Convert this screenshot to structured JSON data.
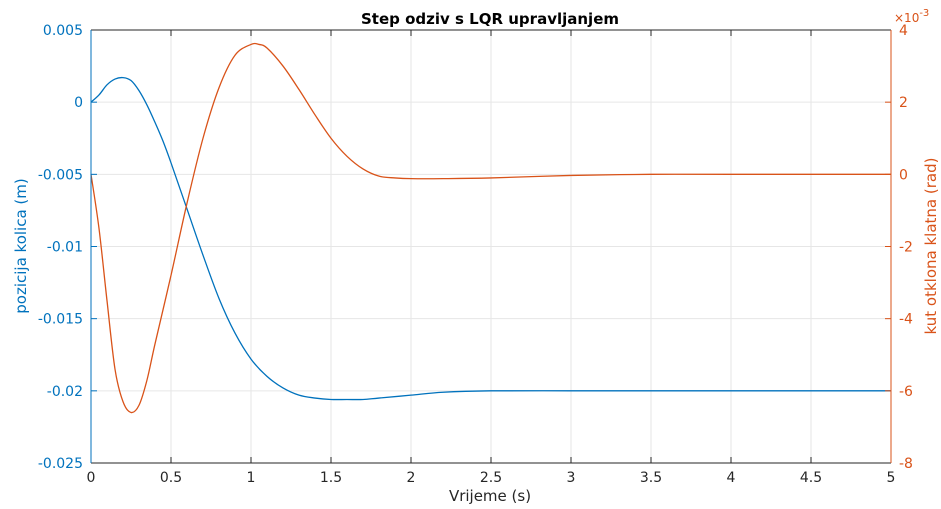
{
  "chart_data": {
    "type": "line",
    "title": "Step odziv s LQR upravljanjem",
    "xlabel": "Vrijeme (s)",
    "ylabel_left": "pozicija kolica (m)",
    "ylabel_right": "kut otklona klatna (rad)",
    "right_exponent_base": "×10",
    "right_exponent_power": "-3",
    "xlim": [
      0,
      5
    ],
    "ylim_left": [
      -0.025,
      0.005
    ],
    "ylim_right": [
      -8,
      4
    ],
    "grid": true,
    "x_ticks": [
      "0",
      "0.5",
      "1",
      "1.5",
      "2",
      "2.5",
      "3",
      "3.5",
      "4",
      "4.5",
      "5"
    ],
    "y_ticks_left": [
      "0.005",
      "0",
      "-0.005",
      "-0.01",
      "-0.015",
      "-0.02",
      "-0.025"
    ],
    "y_ticks_right": [
      "4",
      "2",
      "0",
      "-2",
      "-4",
      "-6",
      "-8"
    ],
    "colors": {
      "left": "#0072BD",
      "right": "#D95319"
    },
    "series": [
      {
        "axis": "left",
        "x": [
          0,
          0.05,
          0.1,
          0.15,
          0.2,
          0.25,
          0.3,
          0.35,
          0.4,
          0.45,
          0.5,
          0.6,
          0.7,
          0.8,
          0.9,
          1.0,
          1.1,
          1.2,
          1.3,
          1.4,
          1.5,
          1.6,
          1.7,
          1.8,
          2.0,
          2.2,
          2.5,
          3.0,
          3.5,
          4.0,
          4.5,
          5.0
        ],
        "values": [
          0,
          0.0005,
          0.0012,
          0.0016,
          0.0017,
          0.0015,
          0.0008,
          -0.0002,
          -0.0014,
          -0.0027,
          -0.0042,
          -0.0074,
          -0.0106,
          -0.0136,
          -0.016,
          -0.0178,
          -0.019,
          -0.0198,
          -0.0203,
          -0.0205,
          -0.0206,
          -0.0206,
          -0.0206,
          -0.0205,
          -0.0203,
          -0.0201,
          -0.02,
          -0.02,
          -0.02,
          -0.02,
          -0.02,
          -0.02
        ]
      },
      {
        "axis": "right",
        "x": [
          0,
          0.05,
          0.1,
          0.15,
          0.2,
          0.25,
          0.3,
          0.35,
          0.4,
          0.5,
          0.6,
          0.7,
          0.8,
          0.9,
          1.0,
          1.05,
          1.1,
          1.2,
          1.3,
          1.4,
          1.5,
          1.6,
          1.7,
          1.8,
          1.9,
          2.0,
          2.2,
          2.5,
          3.0,
          3.5,
          4.0,
          5.0
        ],
        "values": [
          0,
          -1.5,
          -3.5,
          -5.4,
          -6.3,
          -6.6,
          -6.4,
          -5.7,
          -4.7,
          -2.8,
          -0.8,
          1.0,
          2.4,
          3.3,
          3.6,
          3.6,
          3.5,
          3.0,
          2.35,
          1.65,
          1.0,
          0.5,
          0.15,
          -0.05,
          -0.1,
          -0.12,
          -0.12,
          -0.1,
          -0.03,
          0,
          0,
          0
        ]
      }
    ]
  }
}
